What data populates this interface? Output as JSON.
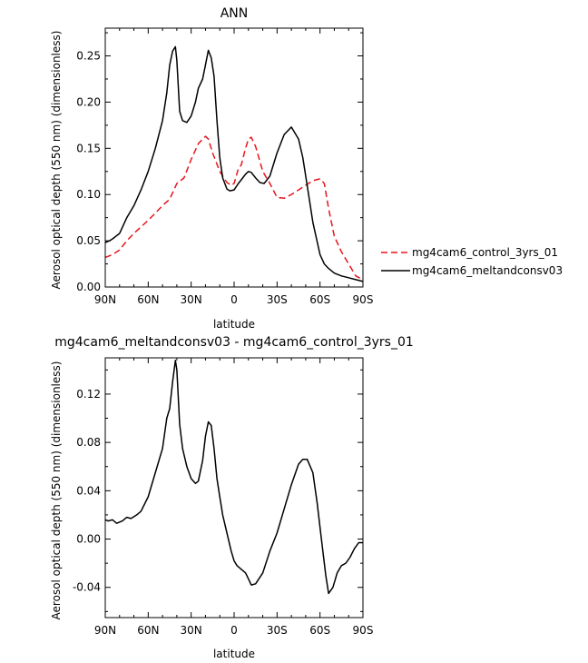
{
  "chart_data": [
    {
      "type": "line",
      "title": "ANN",
      "xlabel": "latitude",
      "ylabel": "Aerosol optical depth (550 nm) (dimensionless)",
      "xlim": [
        90,
        -90
      ],
      "ylim": [
        0.0,
        0.28
      ],
      "x_ticks": [
        90,
        60,
        30,
        0,
        -30,
        -60,
        -90
      ],
      "x_tick_labels": [
        "90N",
        "60N",
        "30N",
        "0",
        "30S",
        "60S",
        "90S"
      ],
      "y_ticks": [
        0.0,
        0.05,
        0.1,
        0.15,
        0.2,
        0.25
      ],
      "y_tick_labels": [
        "0.00",
        "0.05",
        "0.10",
        "0.15",
        "0.20",
        "0.25"
      ],
      "legend_placement": "right",
      "series": [
        {
          "name": "mg4cam6_control_3yrs_01",
          "color": "#e8141b",
          "dash": "dashed",
          "x": [
            90,
            85,
            80,
            75,
            70,
            65,
            60,
            55,
            50,
            45,
            40,
            35,
            30,
            25,
            20,
            18,
            15,
            10,
            5,
            2,
            0,
            -3,
            -5,
            -8,
            -10,
            -12,
            -15,
            -20,
            -25,
            -30,
            -35,
            -40,
            -45,
            -50,
            -55,
            -60,
            -63,
            -66,
            -70,
            -75,
            -80,
            -85,
            -90
          ],
          "y": [
            0.032,
            0.035,
            0.04,
            0.05,
            0.058,
            0.065,
            0.072,
            0.08,
            0.088,
            0.095,
            0.112,
            0.118,
            0.138,
            0.155,
            0.163,
            0.16,
            0.145,
            0.125,
            0.113,
            0.11,
            0.112,
            0.128,
            0.132,
            0.15,
            0.16,
            0.162,
            0.152,
            0.125,
            0.112,
            0.097,
            0.096,
            0.1,
            0.105,
            0.11,
            0.115,
            0.117,
            0.112,
            0.085,
            0.055,
            0.038,
            0.025,
            0.012,
            0.008
          ]
        },
        {
          "name": "mg4cam6_meltandconsv03",
          "color": "#000000",
          "dash": "solid",
          "x": [
            90,
            87,
            85,
            80,
            75,
            70,
            65,
            60,
            55,
            50,
            47,
            45,
            43,
            41,
            40,
            38,
            36,
            33,
            30,
            27,
            25,
            22,
            20,
            18,
            16,
            14,
            12,
            10,
            8,
            5,
            3,
            0,
            -3,
            -6,
            -8,
            -10,
            -12,
            -15,
            -18,
            -21,
            -25,
            -30,
            -35,
            -40,
            -45,
            -48,
            -51,
            -55,
            -60,
            -63,
            -66,
            -70,
            -75,
            -80,
            -85,
            -90
          ],
          "y": [
            0.048,
            0.05,
            0.052,
            0.058,
            0.075,
            0.088,
            0.105,
            0.125,
            0.15,
            0.18,
            0.21,
            0.24,
            0.255,
            0.26,
            0.245,
            0.19,
            0.18,
            0.178,
            0.185,
            0.2,
            0.215,
            0.225,
            0.24,
            0.256,
            0.248,
            0.228,
            0.18,
            0.14,
            0.118,
            0.106,
            0.104,
            0.105,
            0.112,
            0.118,
            0.122,
            0.125,
            0.124,
            0.118,
            0.113,
            0.112,
            0.12,
            0.145,
            0.165,
            0.173,
            0.16,
            0.14,
            0.11,
            0.07,
            0.035,
            0.025,
            0.02,
            0.015,
            0.012,
            0.01,
            0.008,
            0.006
          ]
        }
      ]
    },
    {
      "type": "line",
      "title": "mg4cam6_meltandconsv03 - mg4cam6_control_3yrs_01",
      "xlabel": "latitude",
      "ylabel": "Aerosol optical depth (550 nm) (dimensionless)",
      "xlim": [
        90,
        -90
      ],
      "ylim": [
        -0.065,
        0.15
      ],
      "x_ticks": [
        90,
        60,
        30,
        0,
        -30,
        -60,
        -90
      ],
      "x_tick_labels": [
        "90N",
        "60N",
        "30N",
        "0",
        "30S",
        "60S",
        "90S"
      ],
      "y_ticks": [
        -0.04,
        0.0,
        0.04,
        0.08,
        0.12
      ],
      "y_tick_labels": [
        "-0.04",
        "0.00",
        "0.04",
        "0.08",
        "0.12"
      ],
      "series": [
        {
          "color": "#000000",
          "dash": "solid",
          "x": [
            90,
            88,
            85,
            82,
            78,
            75,
            72,
            68,
            65,
            60,
            55,
            50,
            47,
            45,
            43,
            41,
            40,
            38,
            36,
            33,
            30,
            27,
            25,
            22,
            20,
            18,
            16,
            14,
            12,
            10,
            8,
            5,
            2,
            0,
            -2,
            -5,
            -8,
            -10,
            -12,
            -15,
            -20,
            -25,
            -30,
            -35,
            -40,
            -45,
            -48,
            -51,
            -55,
            -58,
            -61,
            -64,
            -66,
            -69,
            -72,
            -75,
            -78,
            -81,
            -84,
            -87,
            -90
          ],
          "y": [
            0.016,
            0.015,
            0.016,
            0.013,
            0.015,
            0.018,
            0.017,
            0.02,
            0.023,
            0.035,
            0.055,
            0.075,
            0.1,
            0.108,
            0.13,
            0.148,
            0.14,
            0.095,
            0.075,
            0.06,
            0.05,
            0.046,
            0.048,
            0.065,
            0.085,
            0.097,
            0.094,
            0.075,
            0.05,
            0.035,
            0.02,
            0.005,
            -0.01,
            -0.018,
            -0.022,
            -0.025,
            -0.028,
            -0.033,
            -0.038,
            -0.037,
            -0.028,
            -0.01,
            0.005,
            0.025,
            0.045,
            0.062,
            0.066,
            0.066,
            0.055,
            0.03,
            0.0,
            -0.03,
            -0.045,
            -0.04,
            -0.028,
            -0.022,
            -0.02,
            -0.015,
            -0.008,
            -0.003,
            -0.003
          ]
        }
      ]
    }
  ]
}
